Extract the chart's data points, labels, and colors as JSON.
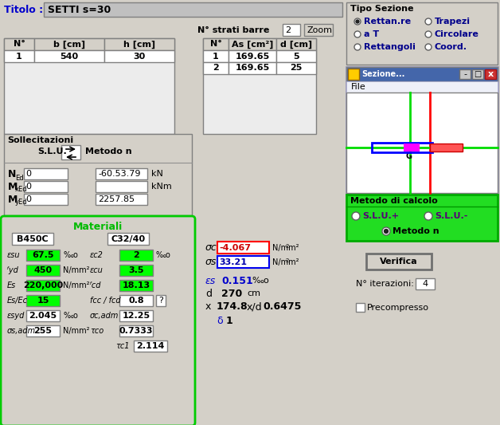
{
  "title_label": "Titolo :",
  "title_value": "SETTI s=30",
  "bg_color": "#d4d0c8",
  "white": "#ffffff",
  "green_bright": "#00ff00",
  "strati_label": "N° strati barre",
  "strati_value": "2",
  "zoom_btn": "Zoom",
  "table1_headers": [
    "N°",
    "b [cm]",
    "h [cm]"
  ],
  "table1_data": [
    [
      "1",
      "540",
      "30"
    ]
  ],
  "table2_headers": [
    "N°",
    "As [cm²]",
    "d [cm]"
  ],
  "table2_data": [
    [
      "1",
      "169.65",
      "5"
    ],
    [
      "2",
      "169.65",
      "25"
    ]
  ],
  "sollecitazioni_label": "Sollecitazioni",
  "slu_label": "S.L.U.",
  "metodo_label": "Metodo n",
  "ned_value": "0",
  "ned_result": "-60.53.79",
  "ned_unit": "kN",
  "mxed_value": "0",
  "mxed_result": "",
  "mxed_unit": "kNm",
  "myed_value": "0",
  "myed_result": "2257.85",
  "materiali_label": "Materiali",
  "b450c_label": "B450C",
  "c3240_label": "C32/40",
  "esu_value": "67.5",
  "ec2_value": "2",
  "fyd_value": "450",
  "fyd_unit": "N/mm²",
  "ecu_value": "3.5",
  "Es_value": "220,000",
  "Es_unit": "N/mm²",
  "fcd_value": "18.13",
  "EsEc_value": "15",
  "fcc_value": "0.8",
  "esyd_value": "2.045",
  "scadm_value": "12.25",
  "ssadm_value": "255",
  "ssadm_unit": "N/mm²",
  "tco_value": "0.7333",
  "tc1_value": "2.114",
  "sigma_c_value": "-4.067",
  "sigma_c_unit": "N/mm²",
  "sigma_s_value": "33.21",
  "sigma_s_unit": "N/mm²",
  "eps_s_value": "0.151",
  "d_value": "270",
  "d_unit": "cm",
  "x_value": "174.8",
  "xd_value": "0.6475",
  "delta_value": "1",
  "tipo_sezione_label": "Tipo Sezione",
  "metodo_calcolo_label": "Metodo di calcolo",
  "verifica_btn": "Verifica",
  "iterazioni_label": "N° iterazioni:",
  "iterazioni_value": "4",
  "precompresso_label": "Precompresso"
}
